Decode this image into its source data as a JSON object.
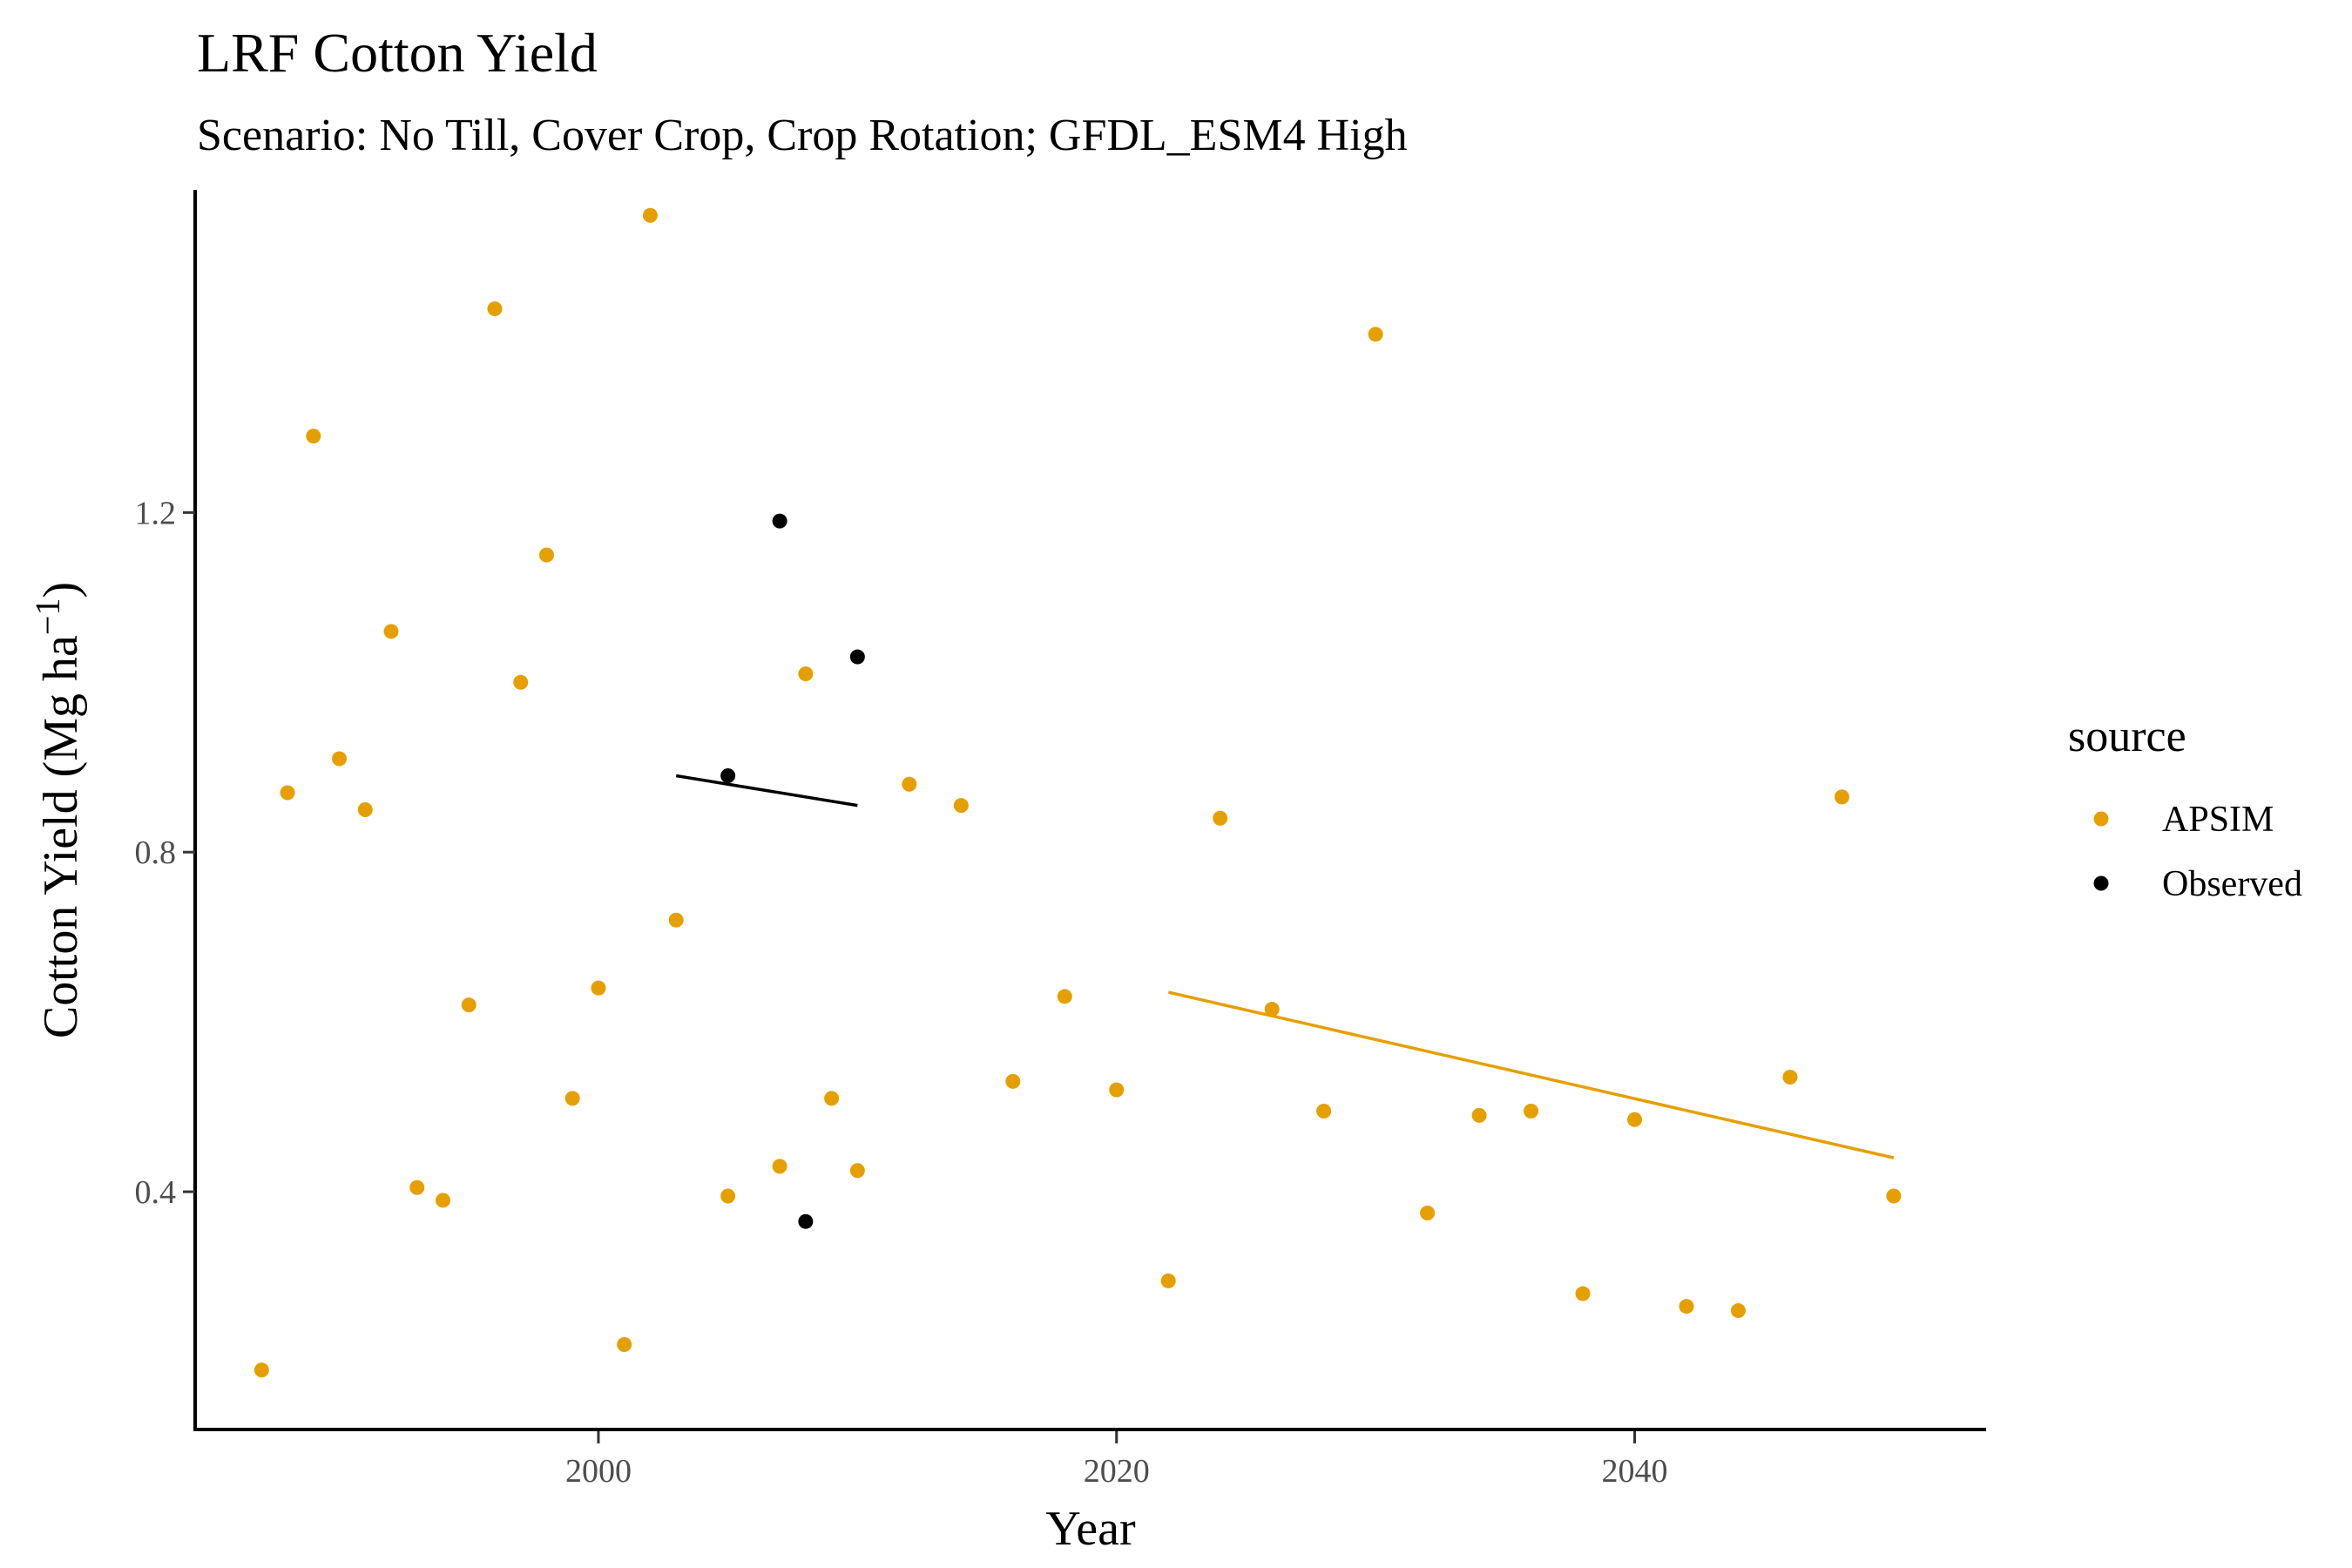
{
  "chart_data": {
    "type": "scatter",
    "title": "LRF Cotton Yield",
    "subtitle": "Scenario: No Till, Cover Crop, Crop Rotation; GFDL_ESM4 High",
    "xlabel": "Year",
    "ylabel_main": "Cotton Yield (Mg ha",
    "ylabel_sup": "−1",
    "ylabel_close": ")",
    "xlim": [
      1984.5,
      2053.5
    ],
    "ylim": [
      0.12,
      1.58
    ],
    "x_ticks": [
      2000,
      2020,
      2040
    ],
    "x_tick_labels": [
      "2000",
      "2020",
      "2040"
    ],
    "y_ticks": [
      0.4,
      0.8,
      1.2
    ],
    "y_tick_labels": [
      "0.4",
      "0.8",
      "1.2"
    ],
    "grid": false,
    "legend": {
      "title": "source",
      "position": "right"
    },
    "series": [
      {
        "name": "APSIM",
        "color": "#E69F00",
        "x": [
          1987,
          1988,
          1989,
          1990,
          1991,
          1992,
          1993,
          1994,
          1995,
          1996,
          1997,
          1998,
          1999,
          2000,
          2001,
          2002,
          2003,
          2005,
          2007,
          2008,
          2009,
          2010,
          2012,
          2014,
          2016,
          2018,
          2020,
          2022,
          2024,
          2026,
          2028,
          2030,
          2032,
          2034,
          2036,
          2038,
          2040,
          2042,
          2044,
          2046,
          2048,
          2050
        ],
        "y": [
          0.19,
          0.87,
          1.29,
          0.91,
          0.85,
          1.06,
          0.405,
          0.39,
          0.62,
          1.44,
          1.0,
          1.15,
          0.51,
          0.64,
          0.22,
          1.55,
          0.72,
          0.395,
          0.43,
          1.01,
          0.51,
          0.425,
          0.88,
          0.855,
          0.53,
          0.63,
          0.52,
          0.295,
          0.84,
          0.615,
          0.495,
          1.41,
          0.375,
          0.49,
          0.495,
          0.28,
          0.485,
          0.265,
          0.26,
          0.535,
          0.865,
          0.395
        ],
        "trend": {
          "x": [
            2022,
            2050
          ],
          "y": [
            0.635,
            0.44
          ]
        }
      },
      {
        "name": "Observed",
        "color": "#000000",
        "x": [
          2005,
          2007,
          2008,
          2010
        ],
        "y": [
          0.89,
          1.19,
          0.365,
          1.03
        ],
        "trend": {
          "x": [
            2003,
            2010
          ],
          "y": [
            0.89,
            0.855
          ]
        }
      }
    ]
  }
}
